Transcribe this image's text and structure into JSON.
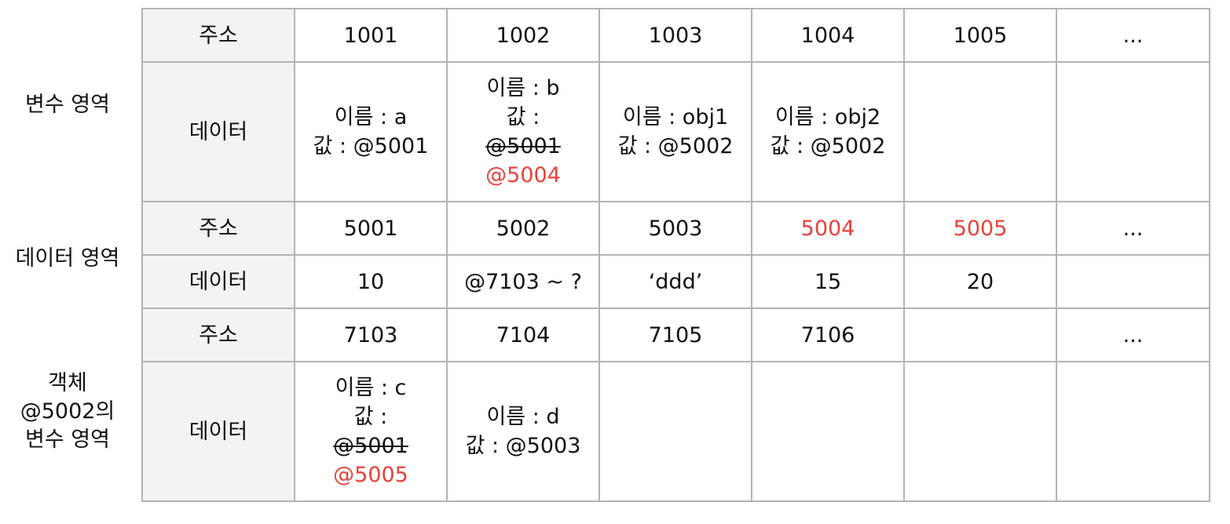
{
  "colors": {
    "highlight": "#e8413a",
    "header_bg": "#f3f3f3",
    "border": "#b3b3b3"
  },
  "section_labels": {
    "variable_area": [
      "변수 영역"
    ],
    "data_area": [
      "데이터 영역"
    ],
    "object_area": [
      "객체",
      "@5002의",
      "변수 영역"
    ]
  },
  "rows": [
    {
      "header": "주소",
      "cells": [
        {
          "lines": [
            {
              "text": "1001"
            }
          ]
        },
        {
          "lines": [
            {
              "text": "1002"
            }
          ]
        },
        {
          "lines": [
            {
              "text": "1003"
            }
          ]
        },
        {
          "lines": [
            {
              "text": "1004"
            }
          ]
        },
        {
          "lines": [
            {
              "text": "1005"
            }
          ]
        },
        {
          "lines": [
            {
              "text": "..."
            }
          ]
        }
      ]
    },
    {
      "header": "데이터",
      "cells": [
        {
          "lines": [
            {
              "text": "이름 : a"
            },
            {
              "text": "값 : @5001"
            }
          ]
        },
        {
          "lines": [
            {
              "text": "이름 : b"
            },
            {
              "text": "값 :"
            },
            {
              "text": "@5001",
              "strike": true
            },
            {
              "text": "@5004",
              "red": true
            }
          ]
        },
        {
          "lines": [
            {
              "text": "이름 : obj1"
            },
            {
              "text": "값 : @5002"
            }
          ]
        },
        {
          "lines": [
            {
              "text": "이름 : obj2"
            },
            {
              "text": "값 : @5002"
            }
          ]
        },
        {
          "lines": []
        },
        {
          "lines": []
        }
      ]
    },
    {
      "header": "주소",
      "cells": [
        {
          "lines": [
            {
              "text": "5001"
            }
          ]
        },
        {
          "lines": [
            {
              "text": "5002"
            }
          ]
        },
        {
          "lines": [
            {
              "text": "5003"
            }
          ]
        },
        {
          "lines": [
            {
              "text": "5004",
              "red": true
            }
          ]
        },
        {
          "lines": [
            {
              "text": "5005",
              "red": true
            }
          ]
        },
        {
          "lines": [
            {
              "text": "..."
            }
          ]
        }
      ]
    },
    {
      "header": "데이터",
      "cells": [
        {
          "lines": [
            {
              "text": "10"
            }
          ]
        },
        {
          "lines": [
            {
              "text": "@7103 ~ ?"
            }
          ]
        },
        {
          "lines": [
            {
              "text": "‘ddd’"
            }
          ]
        },
        {
          "lines": [
            {
              "text": "15"
            }
          ]
        },
        {
          "lines": [
            {
              "text": "20"
            }
          ]
        },
        {
          "lines": []
        }
      ]
    },
    {
      "header": "주소",
      "cells": [
        {
          "lines": [
            {
              "text": "7103"
            }
          ]
        },
        {
          "lines": [
            {
              "text": "7104"
            }
          ]
        },
        {
          "lines": [
            {
              "text": "7105"
            }
          ]
        },
        {
          "lines": [
            {
              "text": "7106"
            }
          ]
        },
        {
          "lines": []
        },
        {
          "lines": [
            {
              "text": "..."
            }
          ]
        }
      ]
    },
    {
      "header": "데이터",
      "cells": [
        {
          "lines": [
            {
              "text": "이름 : c"
            },
            {
              "text": "값 :"
            },
            {
              "text": "@5001",
              "strike": true
            },
            {
              "text": "@5005",
              "red": true
            }
          ]
        },
        {
          "lines": [
            {
              "text": "이름 : d"
            },
            {
              "text": "값 : @5003"
            }
          ]
        },
        {
          "lines": []
        },
        {
          "lines": []
        },
        {
          "lines": []
        },
        {
          "lines": []
        }
      ]
    }
  ]
}
